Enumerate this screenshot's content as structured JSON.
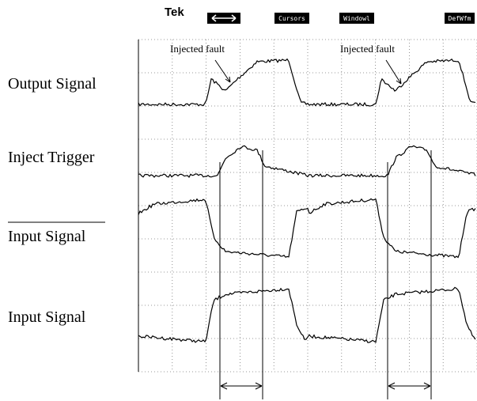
{
  "header": {
    "brand": "Tek",
    "menu": [
      "Cursors",
      "Windowl",
      "DefWfm"
    ]
  },
  "annotations": [
    "Injected fault",
    "Injected fault"
  ],
  "signals": [
    "Output Signal",
    "Inject Trigger",
    "Input Signal",
    "Input Signal"
  ]
}
